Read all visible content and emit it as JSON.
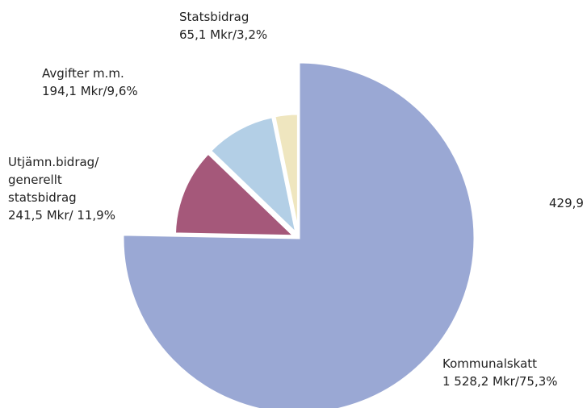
{
  "chart_data": {
    "type": "pie",
    "categories": [
      "Kommunalskatt",
      "Utjämn.bidrag/ generellt statsbidrag",
      "Avgifter m.m.",
      "Statsbidrag"
    ],
    "values": [
      75.3,
      11.9,
      9.6,
      3.2
    ],
    "value_labels": [
      "1 528,2 Mkr/75,3%",
      "241,5 Mkr/ 11,9%",
      "194,1 Mkr/9,6%",
      "65,1 Mkr/3,2%"
    ],
    "colors": [
      "#9aa8d4",
      "#a5587a",
      "#b3cfe6",
      "#efe6bf"
    ],
    "annotations": [
      "429,9"
    ]
  }
}
